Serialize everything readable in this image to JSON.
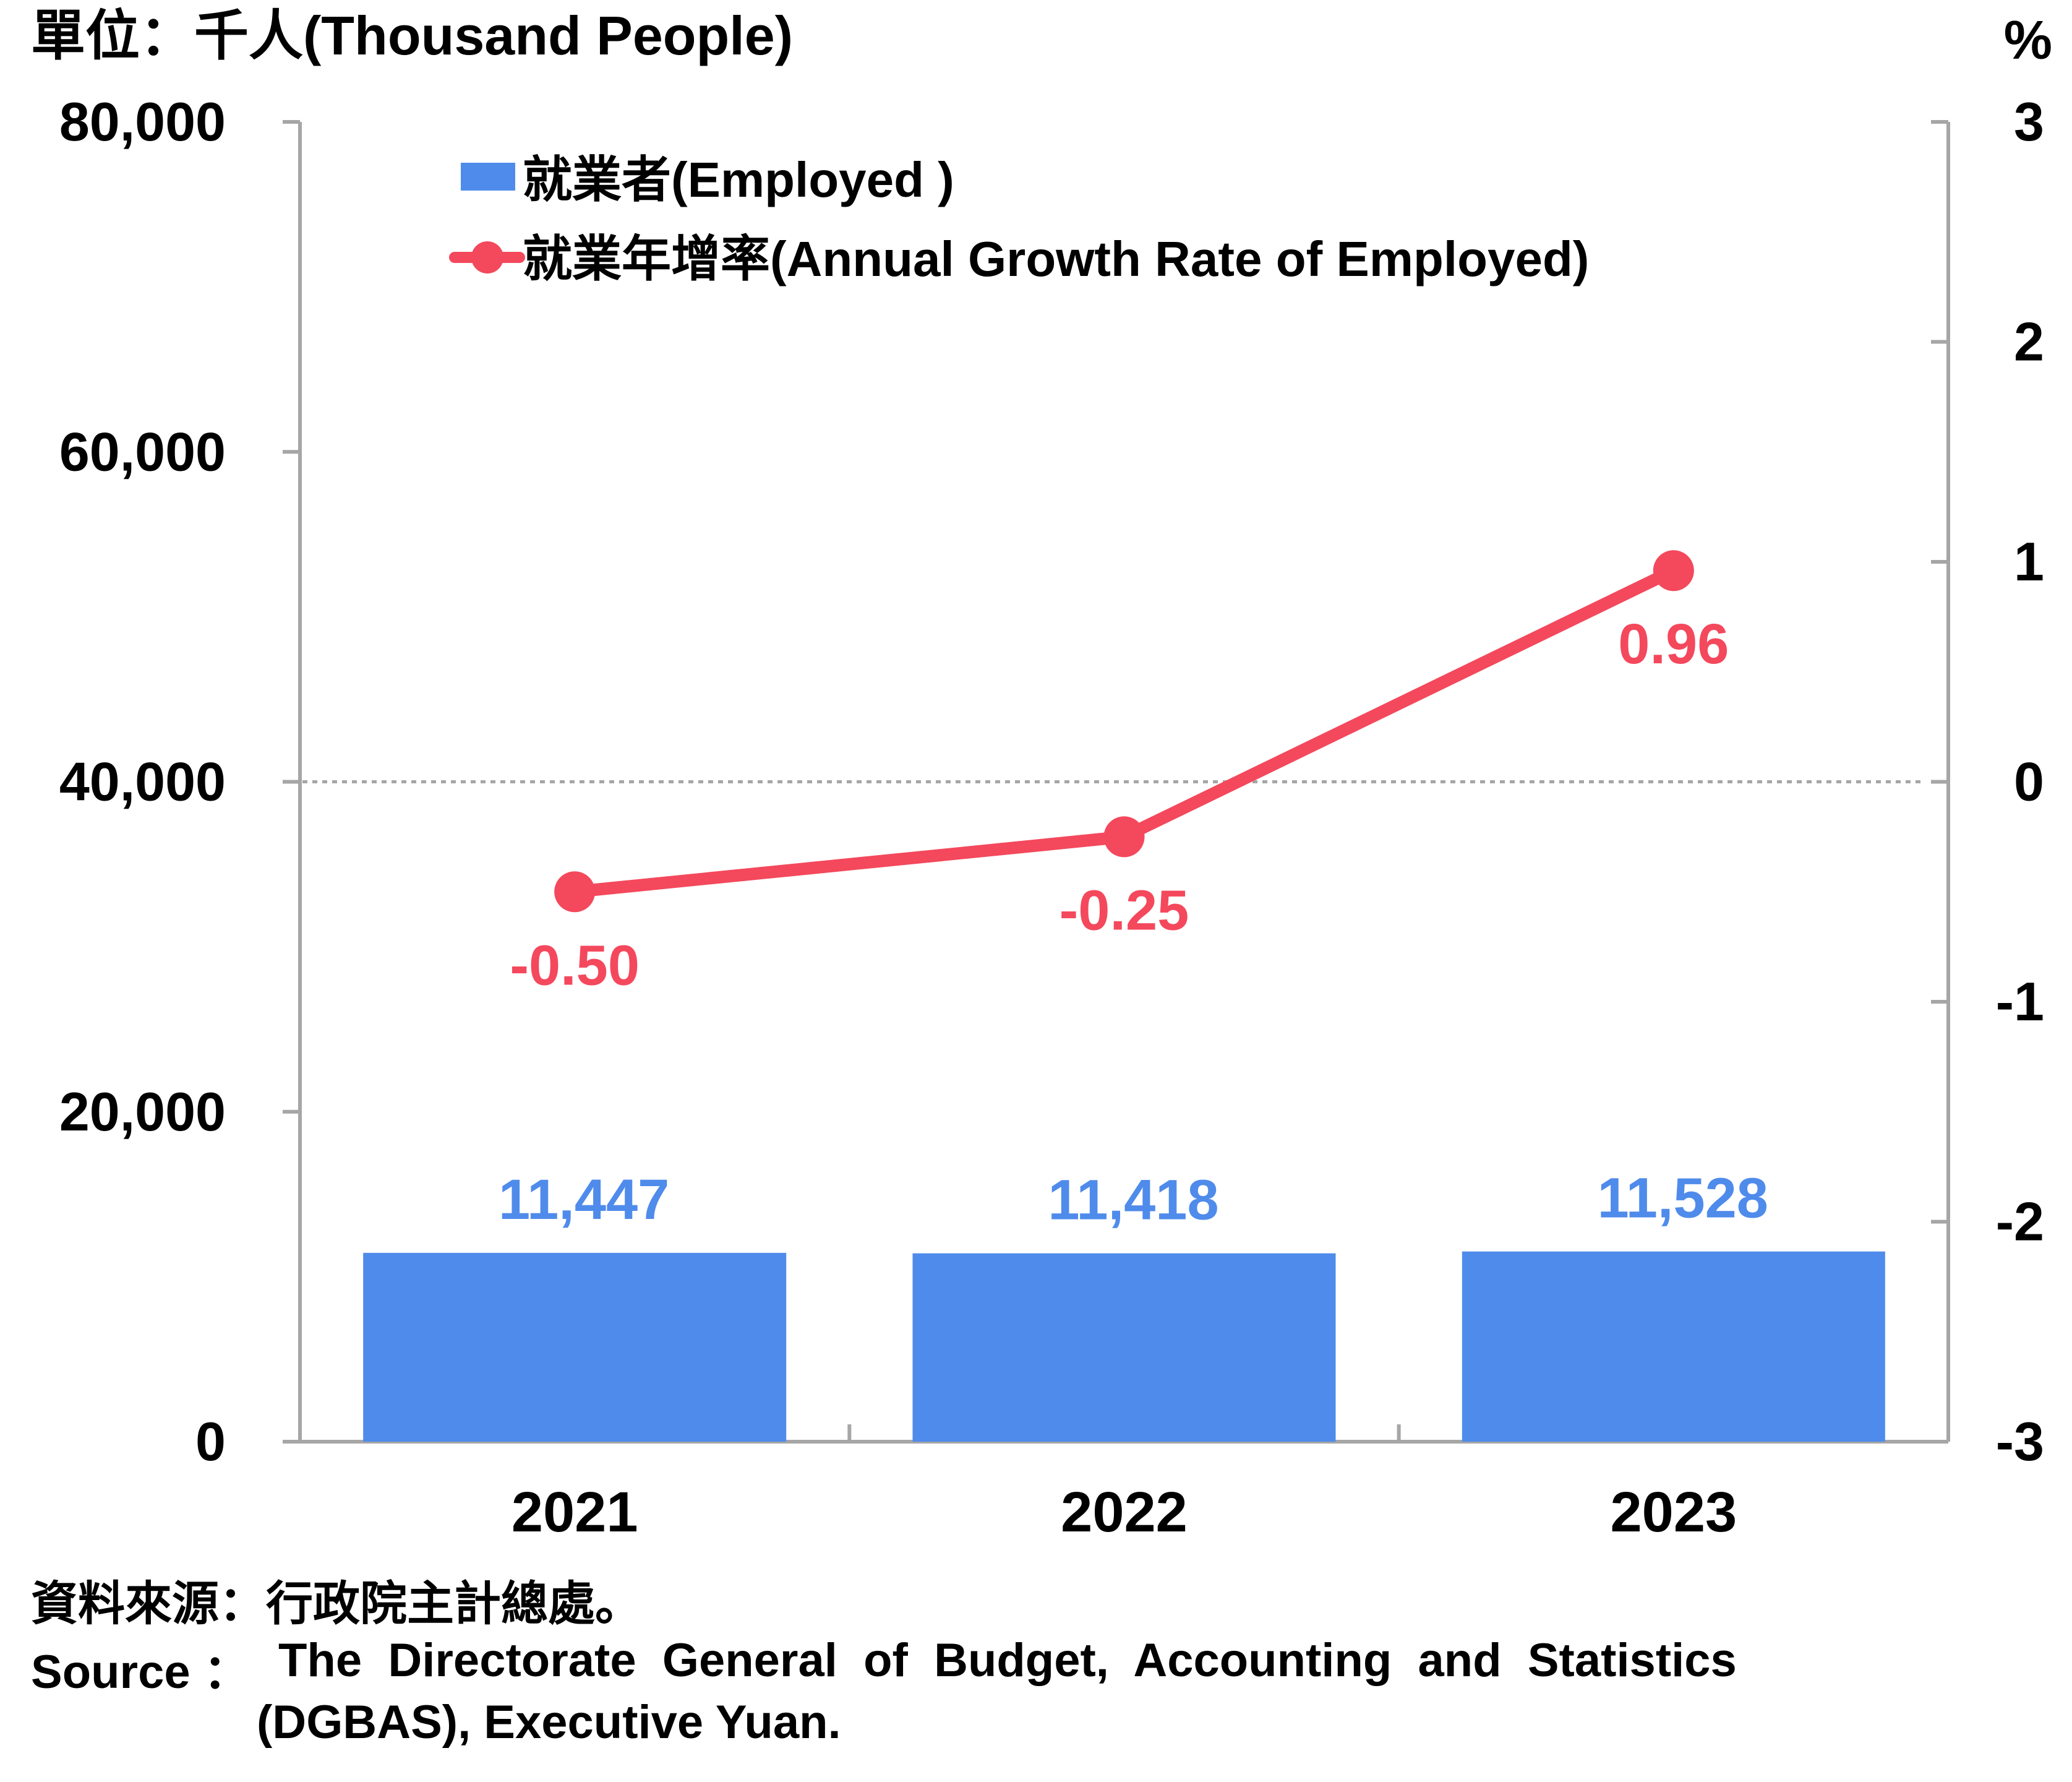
{
  "chart_data": {
    "type": "bar",
    "categories": [
      "2021",
      "2022",
      "2023"
    ],
    "series": [
      {
        "name": "就業者(Employed )",
        "type": "bar",
        "axis": "left",
        "color": "#4F8BEB",
        "values": [
          11447,
          11418,
          11528
        ],
        "labels": [
          "11,447",
          "11,418",
          "11,528"
        ]
      },
      {
        "name": "就業年增率(Annual Growth Rate of Employed)",
        "type": "line",
        "axis": "right",
        "color": "#F4485C",
        "values": [
          -0.5,
          -0.25,
          0.96
        ],
        "labels": [
          "-0.50",
          "-0.25",
          "0.96"
        ]
      }
    ],
    "y_left": {
      "label": "單位：千人(Thousand People)",
      "ylim": [
        0,
        80000
      ],
      "ticks": [
        0,
        20000,
        40000,
        60000,
        80000
      ],
      "tick_labels": [
        "0",
        "20,000",
        "40,000",
        "60,000",
        "80,000"
      ]
    },
    "y_right": {
      "label": "%",
      "ylim": [
        -3,
        3
      ],
      "ticks": [
        -3,
        -2,
        -1,
        0,
        1,
        2,
        3
      ],
      "tick_labels": [
        "-3",
        "-2",
        "-1",
        "0",
        "1",
        "2",
        "3"
      ]
    },
    "zero_line": "dotted",
    "legend_position": "top-left",
    "grid": false
  },
  "source": {
    "zh": "資料來源：行政院主計總處。",
    "en_prefix": "Source ：",
    "en_line1": "The  Directorate  General  of  Budget,  Accounting  and  Statistics",
    "en_line2": "(DGBAS), Executive Yuan."
  }
}
